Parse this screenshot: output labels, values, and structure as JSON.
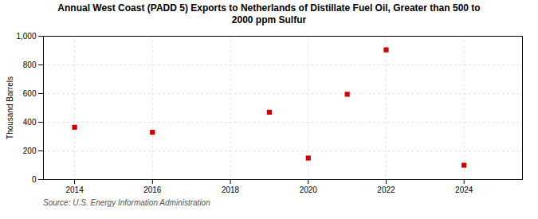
{
  "chart_data": {
    "type": "scatter",
    "title": "Annual West Coast (PADD 5) Exports to Netherlands of Distillate Fuel Oil, Greater than 500 to\n2000 ppm Sulfur",
    "ylabel": "Thousand Barrels",
    "source": "Source: U.S. Energy Information Administration",
    "x": [
      2014,
      2016,
      2019,
      2020,
      2021,
      2022,
      2024
    ],
    "values": [
      365,
      330,
      470,
      150,
      595,
      905,
      100
    ],
    "color": "#cc0000",
    "marker": "square",
    "xlim": [
      2013.2,
      2025.5
    ],
    "xticks": [
      2014,
      2016,
      2018,
      2020,
      2022,
      2024
    ],
    "ylim": [
      0,
      1000
    ],
    "yticks": [
      0,
      200,
      400,
      600,
      800,
      {
        "value": 1000,
        "label": "1,000"
      }
    ],
    "grid": true
  }
}
